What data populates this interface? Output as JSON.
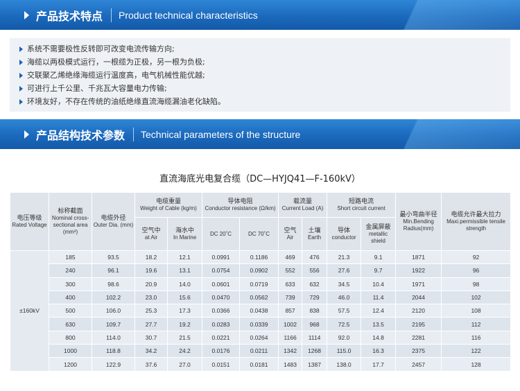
{
  "section1": {
    "title_cn": "产品技术特点",
    "title_en": "Product technical characteristics",
    "features": [
      "系统不需要极性反转即可改变电流传输方向;",
      "海缆以两极模式运行，一根缆为正极，另一根为负极;",
      "交联聚乙烯绝缘海缆运行温度高，电气机械性能优越;",
      "可进行上千公里、千兆瓦大容量电力传输;",
      "环境友好，不存在传统的油纸绝缘直流海缆漏油老化缺陷。"
    ]
  },
  "section2": {
    "title_cn": "产品结构技术参数",
    "title_en": "Technical parameters of the structure"
  },
  "table": {
    "title": "直流海底光电复合缆（DC—HYJQ41—F-160kV）",
    "headers": {
      "voltage_cn": "电压等级",
      "voltage_en": "Rated Voltage",
      "section_cn": "标称截面",
      "section_en": "Nominal cross-sectional area (mm²)",
      "diameter_cn": "电缆外径",
      "diameter_en": "Outer Dia. (mm)",
      "weight_cn": "电缆重量",
      "weight_en": "Weight of Cable (kg/m)",
      "resistance_cn": "导体电阻",
      "resistance_en": "Conductor resistance (Ω/km)",
      "load_cn": "载流量",
      "load_en": "Current Load (A)",
      "short_cn": "短路电流",
      "short_en": "Short circuit current",
      "bend_cn": "最小弯曲半径",
      "bend_en": "Min.Bending Radius(mm)",
      "tensile_cn": "电缆允许最大拉力",
      "tensile_en": "Maxi.permissible tensile strength",
      "air_cn": "空气中",
      "air_en": "at Air",
      "marine_cn": "海水中",
      "marine_en": "In Marine",
      "dc20": "DC 20˚C",
      "dc70": "DC 70˚C",
      "load_air_cn": "空气",
      "load_air_en": "Air",
      "load_earth_cn": "土壤",
      "load_earth_en": "Earth",
      "short_conductor_cn": "导体",
      "short_conductor_en": "conductor",
      "short_shield_cn": "金属屏蔽",
      "short_shield_en": "metallic shield"
    },
    "voltage": "±160kV",
    "rows": [
      [
        "185",
        "93.5",
        "18.2",
        "12.1",
        "0.0991",
        "0.1186",
        "469",
        "476",
        "21.3",
        "9.1",
        "1871",
        "92"
      ],
      [
        "240",
        "96.1",
        "19.6",
        "13.1",
        "0.0754",
        "0.0902",
        "552",
        "556",
        "27.6",
        "9.7",
        "1922",
        "96"
      ],
      [
        "300",
        "98.6",
        "20.9",
        "14.0",
        "0.0601",
        "0.0719",
        "633",
        "632",
        "34.5",
        "10.4",
        "1971",
        "98"
      ],
      [
        "400",
        "102.2",
        "23.0",
        "15.6",
        "0.0470",
        "0.0562",
        "739",
        "729",
        "46.0",
        "11.4",
        "2044",
        "102"
      ],
      [
        "500",
        "106.0",
        "25.3",
        "17.3",
        "0.0366",
        "0.0438",
        "857",
        "838",
        "57.5",
        "12.4",
        "2120",
        "108"
      ],
      [
        "630",
        "109.7",
        "27.7",
        "19.2",
        "0.0283",
        "0.0339",
        "1002",
        "968",
        "72.5",
        "13.5",
        "2195",
        "112"
      ],
      [
        "800",
        "114.0",
        "30.7",
        "21.5",
        "0.0221",
        "0.0264",
        "1166",
        "1114",
        "92.0",
        "14.8",
        "2281",
        "116"
      ],
      [
        "1000",
        "118.8",
        "34.2",
        "24.2",
        "0.0176",
        "0.0211",
        "1342",
        "1268",
        "115.0",
        "16.3",
        "2375",
        "122"
      ],
      [
        "1200",
        "122.9",
        "37.6",
        "27.0",
        "0.0151",
        "0.0181",
        "1483",
        "1387",
        "138.0",
        "17.7",
        "2457",
        "128"
      ]
    ]
  }
}
